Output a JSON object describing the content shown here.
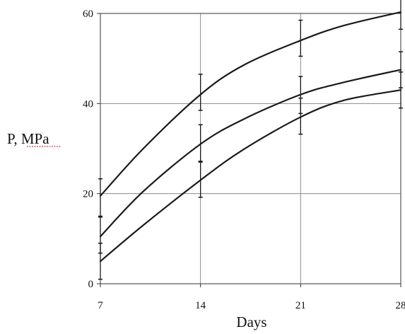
{
  "chart_data": {
    "type": "line",
    "xlabel": "Days",
    "ylabel_prefix": "P, ",
    "ylabel_unit": "MPa",
    "x_ticks": [
      7,
      14,
      21,
      28
    ],
    "y_ticks": [
      0,
      20,
      40,
      60
    ],
    "xlim": [
      7,
      28
    ],
    "ylim": [
      0,
      60
    ],
    "grid": true,
    "legend": "none",
    "line_color": "#1a1a1a",
    "grid_color": "#8a8a8a",
    "axis_color": "#333333",
    "spellcheck_underline_color": "#c8102e",
    "series": [
      {
        "x": [
          7,
          10,
          14,
          17,
          21,
          24,
          28
        ],
        "y": [
          19.5,
          30,
          42,
          48.5,
          54,
          57.3,
          60.3
        ]
      },
      {
        "x": [
          7,
          10,
          14,
          17,
          21,
          24,
          28
        ],
        "y": [
          10.5,
          20.5,
          31,
          36.5,
          42,
          44.7,
          47.5
        ]
      },
      {
        "x": [
          7,
          10,
          14,
          17,
          21,
          24,
          28
        ],
        "y": [
          5,
          13,
          23,
          29.8,
          37,
          40.7,
          43
        ]
      }
    ],
    "error_bars": [
      {
        "x": 7,
        "low": 15,
        "high": 23.3
      },
      {
        "x": 7,
        "low": 6.8,
        "high": 14.8
      },
      {
        "x": 7,
        "low": 1,
        "high": 9
      },
      {
        "x": 14,
        "low": 38.5,
        "high": 46.5
      },
      {
        "x": 14,
        "low": 27,
        "high": 35.3
      },
      {
        "x": 14,
        "low": 19.2,
        "high": 27.2
      },
      {
        "x": 21,
        "low": 50.5,
        "high": 58.5
      },
      {
        "x": 21,
        "low": 37.8,
        "high": 46
      },
      {
        "x": 21,
        "low": 33.2,
        "high": 41.2
      },
      {
        "x": 28,
        "low": 56.5,
        "high": 64.5
      },
      {
        "x": 28,
        "low": 43.5,
        "high": 51.5
      },
      {
        "x": 28,
        "low": 39,
        "high": 47
      }
    ]
  }
}
